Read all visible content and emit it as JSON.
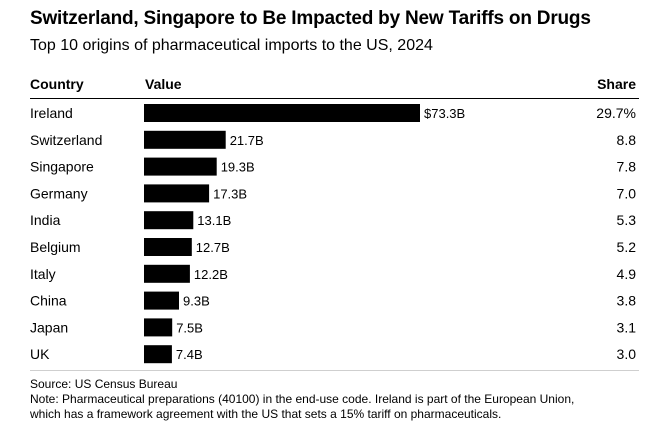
{
  "title": "Switzerland, Singapore to Be Impacted by New Tariffs on Drugs",
  "subtitle": "Top 10 origins of pharmaceutical imports to the US, 2024",
  "headers": {
    "country": "Country",
    "value": "Value",
    "share": "Share"
  },
  "chart_data": {
    "type": "bar",
    "orientation": "horizontal",
    "categories": [
      "Ireland",
      "Switzerland",
      "Singapore",
      "Germany",
      "India",
      "Belgium",
      "Italy",
      "China",
      "Japan",
      "UK"
    ],
    "values": [
      73.3,
      21.7,
      19.3,
      17.3,
      13.1,
      12.7,
      12.2,
      9.3,
      7.5,
      7.4
    ],
    "value_labels": [
      "$73.3B",
      "21.7B",
      "19.3B",
      "17.3B",
      "13.1B",
      "12.7B",
      "12.2B",
      "9.3B",
      "7.5B",
      "7.4B"
    ],
    "share_labels": [
      "29.7%",
      "8.8",
      "7.8",
      "7.0",
      "5.3",
      "5.2",
      "4.9",
      "3.8",
      "3.1",
      "3.0"
    ],
    "bar_color": "#000000",
    "xlim": [
      0,
      73.3
    ]
  },
  "footer": {
    "source": "Source: US Census Bureau",
    "note_line1": "Note: Pharmaceutical preparations (40100) in the end-use code. Ireland is part of the European Union,",
    "note_line2": "which has a framework agreement with the US that sets a 15% tariff on pharmaceuticals."
  }
}
